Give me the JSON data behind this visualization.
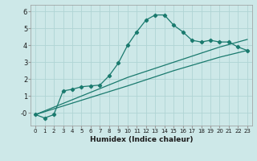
{
  "xlabel": "Humidex (Indice chaleur)",
  "background_color": "#cde8e8",
  "grid_color": "#b0d4d4",
  "line_color": "#1a7a6e",
  "xlim": [
    -0.5,
    23.5
  ],
  "ylim": [
    -0.75,
    6.4
  ],
  "yticks": [
    0,
    1,
    2,
    3,
    4,
    5,
    6
  ],
  "ytick_labels": [
    "-0",
    "1",
    "2",
    "3",
    "4",
    "5",
    "6"
  ],
  "xticks": [
    0,
    1,
    2,
    3,
    4,
    5,
    6,
    7,
    8,
    9,
    10,
    11,
    12,
    13,
    14,
    15,
    16,
    17,
    18,
    19,
    20,
    21,
    22,
    23
  ],
  "curve1_x": [
    0,
    1,
    2,
    3,
    4,
    5,
    6,
    7,
    8,
    9,
    10,
    11,
    12,
    13,
    14,
    15,
    16,
    17,
    18,
    19,
    20,
    21,
    22,
    23
  ],
  "curve1_y": [
    -0.1,
    -0.3,
    -0.1,
    1.3,
    1.4,
    1.55,
    1.6,
    1.65,
    2.2,
    2.95,
    4.0,
    4.8,
    5.5,
    5.8,
    5.8,
    5.2,
    4.8,
    4.3,
    4.2,
    4.3,
    4.2,
    4.2,
    3.9,
    3.7
  ],
  "curve2_x": [
    0,
    10,
    15,
    20,
    23
  ],
  "curve2_y": [
    -0.1,
    2.1,
    3.0,
    3.9,
    4.35
  ],
  "curve3_x": [
    0,
    10,
    15,
    20,
    23
  ],
  "curve3_y": [
    -0.1,
    1.6,
    2.5,
    3.3,
    3.7
  ],
  "figsize": [
    3.2,
    2.0
  ],
  "dpi": 100
}
